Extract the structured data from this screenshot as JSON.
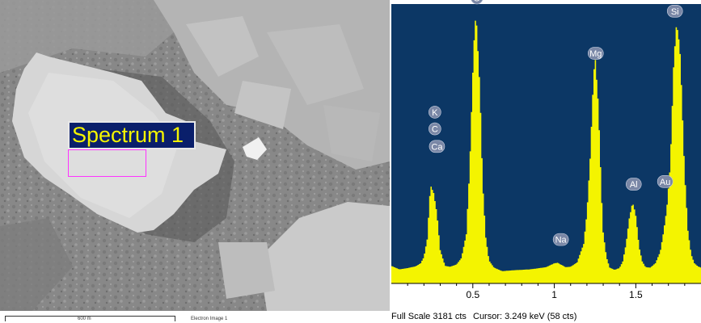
{
  "sem": {
    "region_label": "Spectrum 1",
    "scale_text": "600 m",
    "image_caption": "Electron Image 1"
  },
  "status": {
    "full_scale": "Full Scale 3181 cts",
    "cursor": "Cursor: 3.249 keV (58 cts)"
  },
  "colors": {
    "plot_background": "#0c3765",
    "spectrum_fill": "#f4f400",
    "label_marker": "#7a87a6",
    "region_label_background": "#0a1f6b",
    "region_box": "#ff33ff"
  },
  "chart_data": {
    "type": "area",
    "xlim": [
      0.0,
      1.9
    ],
    "ylim": [
      0,
      3181
    ],
    "ticks": [
      {
        "value": 0.5,
        "label": "0.5"
      },
      {
        "value": 1.0,
        "label": "1"
      },
      {
        "value": 1.5,
        "label": "1.5"
      }
    ],
    "spectrum": {
      "x": [
        0.0,
        0.05,
        0.1,
        0.15,
        0.18,
        0.2,
        0.22,
        0.24,
        0.26,
        0.28,
        0.3,
        0.33,
        0.36,
        0.4,
        0.43,
        0.46,
        0.48,
        0.5,
        0.51,
        0.52,
        0.53,
        0.54,
        0.55,
        0.56,
        0.58,
        0.6,
        0.63,
        0.68,
        0.75,
        0.85,
        0.95,
        1.0,
        1.02,
        1.04,
        1.07,
        1.1,
        1.14,
        1.18,
        1.2,
        1.22,
        1.24,
        1.25,
        1.26,
        1.27,
        1.28,
        1.29,
        1.3,
        1.32,
        1.34,
        1.37,
        1.4,
        1.42,
        1.44,
        1.46,
        1.48,
        1.49,
        1.5,
        1.51,
        1.52,
        1.54,
        1.56,
        1.59,
        1.62,
        1.65,
        1.67,
        1.69,
        1.71,
        1.72,
        1.73,
        1.74,
        1.75,
        1.76,
        1.77,
        1.78,
        1.8,
        1.82,
        1.84,
        1.86,
        1.88,
        1.9
      ],
      "counts": [
        200,
        160,
        175,
        195,
        230,
        300,
        500,
        1120,
        1030,
        800,
        380,
        200,
        190,
        215,
        290,
        560,
        1280,
        2400,
        2860,
        3080,
        2720,
        2350,
        1840,
        1150,
        520,
        260,
        180,
        140,
        150,
        160,
        185,
        230,
        235,
        215,
        185,
        190,
        240,
        450,
        800,
        1420,
        2330,
        2600,
        2320,
        2050,
        1540,
        1000,
        580,
        300,
        180,
        155,
        175,
        250,
        450,
        740,
        920,
        860,
        770,
        610,
        420,
        250,
        185,
        180,
        230,
        360,
        580,
        850,
        1310,
        1770,
        2400,
        2700,
        2970,
        2830,
        2700,
        2260,
        1250,
        600,
        330,
        230,
        195,
        180
      ]
    },
    "peaks": [
      {
        "element": "K",
        "x": 0.267,
        "y": 1950
      },
      {
        "element": "C",
        "x": 0.267,
        "y": 1760
      },
      {
        "element": "Ca",
        "x": 0.28,
        "y": 1560
      },
      {
        "element": "O",
        "x": 0.525,
        "y": 3250
      },
      {
        "element": "Na",
        "x": 1.04,
        "y": 500
      },
      {
        "element": "Mg",
        "x": 1.254,
        "y": 2620
      },
      {
        "element": "Al",
        "x": 1.487,
        "y": 1130
      },
      {
        "element": "Au",
        "x": 1.68,
        "y": 1160
      },
      {
        "element": "Si",
        "x": 1.74,
        "y": 3100
      }
    ]
  }
}
